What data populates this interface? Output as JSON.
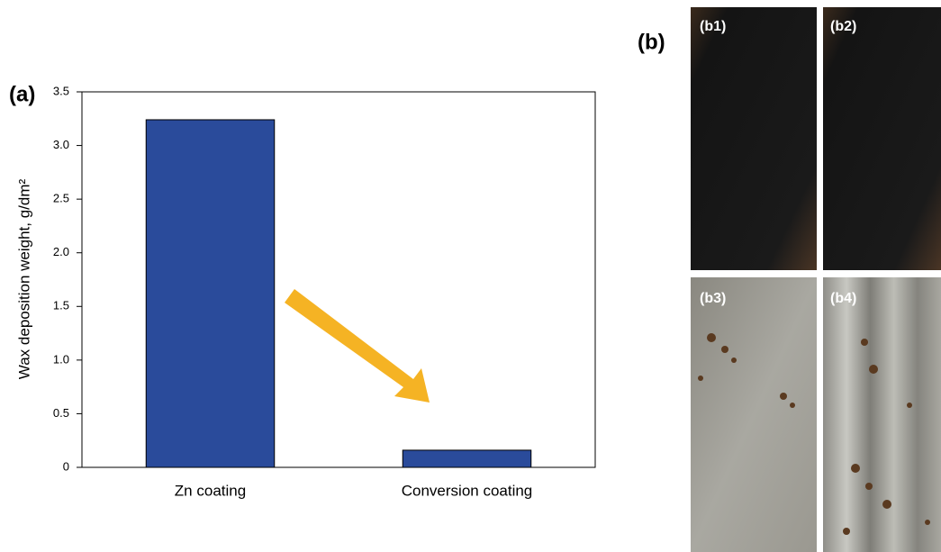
{
  "chart_data": {
    "type": "bar",
    "panel_label": "(a)",
    "y_label": "Wax deposition weight, g/dm²",
    "categories": [
      "Zn coating",
      "Conversion coating"
    ],
    "values": [
      3.24,
      0.16
    ],
    "color": "#2a4b9b",
    "ylim": [
      0,
      3.5
    ],
    "yticks": [
      0,
      0.5,
      {
        "value": 1,
        "label": "1.0"
      },
      1.5,
      {
        "value": 2,
        "label": "2.0"
      },
      2.5,
      {
        "value": 3,
        "label": "3.0"
      },
      3.5
    ]
  },
  "photos": {
    "panel_label": "(b)",
    "labels": [
      "(b1)",
      "(b2)",
      "(b3)",
      "(b4)"
    ]
  }
}
